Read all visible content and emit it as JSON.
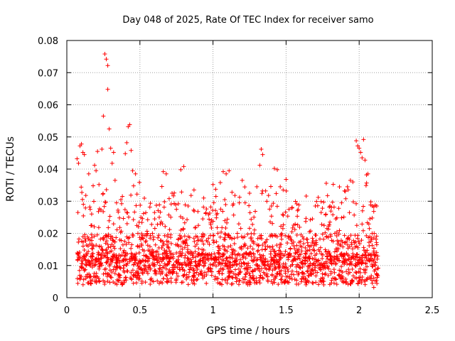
{
  "chart_data": {
    "type": "scatter",
    "title": "Day 048 of 2025, Rate Of TEC Index for receiver samo",
    "xlabel": "GPS time / hours",
    "ylabel": "ROTI / TECUs",
    "xlim": [
      0,
      2.5
    ],
    "ylim": [
      0,
      0.08
    ],
    "xticks": [
      0,
      0.5,
      1,
      1.5,
      2,
      2.5
    ],
    "xtick_labels": [
      "0",
      "0.5",
      "1",
      "1.5",
      "2",
      "2.5"
    ],
    "yticks": [
      0,
      0.01,
      0.02,
      0.03,
      0.04,
      0.05,
      0.06,
      0.07,
      0.08
    ],
    "ytick_labels": [
      "0",
      "0.01",
      "0.02",
      "0.03",
      "0.04",
      "0.05",
      "0.06",
      "0.07",
      "0.08"
    ],
    "grid": true,
    "marker": "+",
    "color": "#ff0000",
    "points": [
      [
        0.07,
        0.0432
      ],
      [
        0.08,
        0.0418
      ],
      [
        0.09,
        0.0472
      ],
      [
        0.1,
        0.0478
      ],
      [
        0.11,
        0.0452
      ],
      [
        0.12,
        0.0445
      ],
      [
        0.13,
        0.0318
      ],
      [
        0.09,
        0.0125
      ],
      [
        0.1,
        0.0095
      ],
      [
        0.12,
        0.0148
      ],
      [
        0.14,
        0.0072
      ],
      [
        0.15,
        0.0385
      ],
      [
        0.16,
        0.0275
      ],
      [
        0.17,
        0.0225
      ],
      [
        0.18,
        0.0348
      ],
      [
        0.19,
        0.0412
      ],
      [
        0.2,
        0.0395
      ],
      [
        0.21,
        0.0455
      ],
      [
        0.22,
        0.0352
      ],
      [
        0.23,
        0.0182
      ],
      [
        0.24,
        0.0462
      ],
      [
        0.25,
        0.0565
      ],
      [
        0.26,
        0.0758
      ],
      [
        0.27,
        0.0742
      ],
      [
        0.28,
        0.0722
      ],
      [
        0.28,
        0.0648
      ],
      [
        0.29,
        0.0525
      ],
      [
        0.3,
        0.0465
      ],
      [
        0.31,
        0.0418
      ],
      [
        0.32,
        0.0452
      ],
      [
        0.33,
        0.0365
      ],
      [
        0.34,
        0.0295
      ],
      [
        0.35,
        0.0272
      ],
      [
        0.36,
        0.0248
      ],
      [
        0.37,
        0.0305
      ],
      [
        0.38,
        0.0315
      ],
      [
        0.4,
        0.0448
      ],
      [
        0.41,
        0.0482
      ],
      [
        0.42,
        0.0532
      ],
      [
        0.43,
        0.0538
      ],
      [
        0.44,
        0.0458
      ],
      [
        0.45,
        0.0395
      ],
      [
        0.47,
        0.0385
      ],
      [
        0.48,
        0.0322
      ],
      [
        0.5,
        0.0095
      ],
      [
        0.52,
        0.0185
      ],
      [
        0.55,
        0.0198
      ],
      [
        0.58,
        0.0228
      ],
      [
        0.6,
        0.0265
      ],
      [
        0.62,
        0.0228
      ],
      [
        0.64,
        0.0178
      ],
      [
        0.66,
        0.0392
      ],
      [
        0.68,
        0.0385
      ],
      [
        0.7,
        0.0308
      ],
      [
        0.72,
        0.0325
      ],
      [
        0.75,
        0.0275
      ],
      [
        0.78,
        0.0398
      ],
      [
        0.8,
        0.0408
      ],
      [
        0.83,
        0.0285
      ],
      [
        0.85,
        0.0318
      ],
      [
        0.87,
        0.0335
      ],
      [
        0.9,
        0.0225
      ],
      [
        0.93,
        0.0245
      ],
      [
        0.95,
        0.0262
      ],
      [
        0.97,
        0.0258
      ],
      [
        1.0,
        0.0352
      ],
      [
        1.02,
        0.0315
      ],
      [
        1.05,
        0.0358
      ],
      [
        1.07,
        0.0392
      ],
      [
        1.09,
        0.0385
      ],
      [
        1.11,
        0.0395
      ],
      [
        1.13,
        0.0328
      ],
      [
        1.15,
        0.0318
      ],
      [
        1.18,
        0.0295
      ],
      [
        1.2,
        0.0365
      ],
      [
        1.22,
        0.0295
      ],
      [
        1.25,
        0.0325
      ],
      [
        1.27,
        0.0228
      ],
      [
        1.3,
        0.0345
      ],
      [
        1.32,
        0.0412
      ],
      [
        1.33,
        0.0462
      ],
      [
        1.34,
        0.0445
      ],
      [
        1.36,
        0.0332
      ],
      [
        1.38,
        0.0318
      ],
      [
        1.4,
        0.0285
      ],
      [
        1.42,
        0.0402
      ],
      [
        1.44,
        0.0398
      ],
      [
        1.46,
        0.0345
      ],
      [
        1.48,
        0.0335
      ],
      [
        1.5,
        0.0368
      ],
      [
        1.52,
        0.0275
      ],
      [
        1.54,
        0.0205
      ],
      [
        1.56,
        0.0152
      ],
      [
        1.58,
        0.0122
      ],
      [
        1.6,
        0.0135
      ],
      [
        1.62,
        0.0168
      ],
      [
        1.64,
        0.0182
      ],
      [
        1.66,
        0.0205
      ],
      [
        1.68,
        0.0245
      ],
      [
        1.7,
        0.0285
      ],
      [
        1.72,
        0.0312
      ],
      [
        1.74,
        0.0265
      ],
      [
        1.76,
        0.0225
      ],
      [
        1.78,
        0.0215
      ],
      [
        1.8,
        0.0235
      ],
      [
        1.82,
        0.0258
      ],
      [
        1.84,
        0.0245
      ],
      [
        1.86,
        0.0278
      ],
      [
        1.88,
        0.0295
      ],
      [
        1.9,
        0.0332
      ],
      [
        1.92,
        0.0345
      ],
      [
        1.94,
        0.0365
      ],
      [
        1.96,
        0.0298
      ],
      [
        1.98,
        0.0488
      ],
      [
        1.99,
        0.0472
      ],
      [
        2.0,
        0.0465
      ],
      [
        2.01,
        0.0452
      ],
      [
        2.02,
        0.0435
      ],
      [
        2.03,
        0.0492
      ],
      [
        2.04,
        0.0428
      ],
      [
        2.05,
        0.0382
      ],
      [
        2.06,
        0.0385
      ],
      [
        2.08,
        0.0298
      ],
      [
        2.09,
        0.0285
      ],
      [
        2.1,
        0.0282
      ],
      [
        2.11,
        0.0288
      ],
      [
        2.12,
        0.0285
      ],
      [
        2.07,
        0.0215
      ],
      [
        2.08,
        0.0175
      ],
      [
        2.1,
        0.0145
      ],
      [
        2.12,
        0.0165
      ],
      [
        2.09,
        0.0045
      ],
      [
        2.1,
        0.0032
      ],
      [
        2.11,
        0.0052
      ],
      [
        2.12,
        0.0075
      ],
      [
        2.13,
        0.0092
      ],
      [
        2.06,
        0.0062
      ],
      [
        2.04,
        0.0078
      ]
    ]
  }
}
